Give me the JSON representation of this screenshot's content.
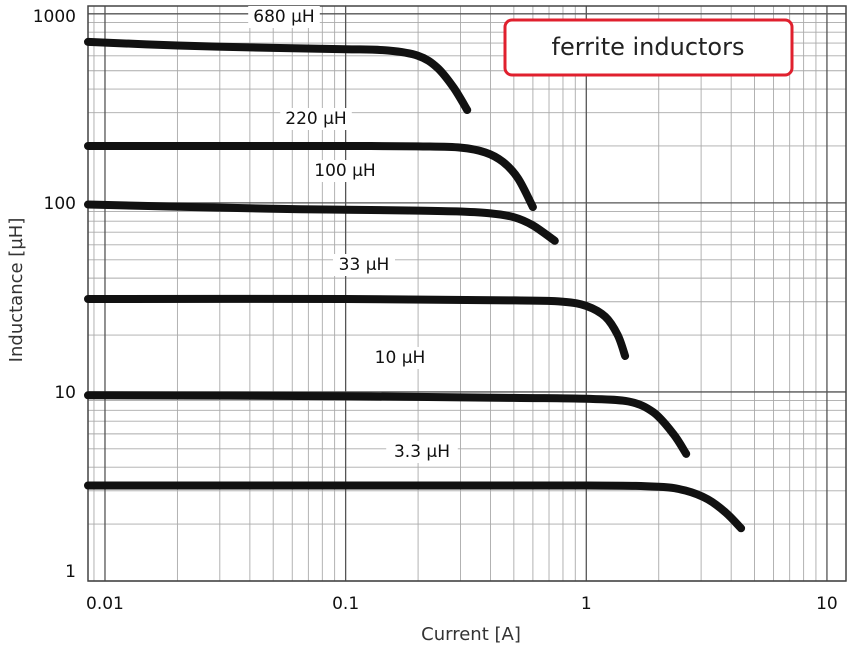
{
  "chart_data": {
    "type": "line",
    "title": "",
    "xlabel": "Current [A]",
    "ylabel": "Inductance [µH]",
    "x_scale": "log",
    "y_scale": "log",
    "xlim": [
      0.0085,
      12
    ],
    "ylim": [
      1,
      1100
    ],
    "grid": true,
    "x_ticks": [
      {
        "value": 0.01,
        "label": "0.01"
      },
      {
        "value": 0.1,
        "label": "0.1"
      },
      {
        "value": 1,
        "label": "1"
      },
      {
        "value": 10,
        "label": "10"
      }
    ],
    "y_ticks": [
      {
        "value": 1,
        "label": "1"
      },
      {
        "value": 10,
        "label": "10"
      },
      {
        "value": 100,
        "label": "100"
      },
      {
        "value": 1000,
        "label": "1000"
      }
    ],
    "callout": "ferrite inductors",
    "accent_color": "#e0202e",
    "line_color": "#111111",
    "series": [
      {
        "name": "680 µH",
        "points": [
          [
            0.0085,
            710
          ],
          [
            0.02,
            680
          ],
          [
            0.05,
            660
          ],
          [
            0.1,
            650
          ],
          [
            0.15,
            640
          ],
          [
            0.2,
            600
          ],
          [
            0.24,
            520
          ],
          [
            0.28,
            410
          ],
          [
            0.32,
            310
          ]
        ]
      },
      {
        "name": "220 µH",
        "points": [
          [
            0.0085,
            200
          ],
          [
            0.05,
            200
          ],
          [
            0.1,
            200
          ],
          [
            0.2,
            199
          ],
          [
            0.3,
            196
          ],
          [
            0.38,
            185
          ],
          [
            0.45,
            165
          ],
          [
            0.52,
            135
          ],
          [
            0.6,
            95
          ]
        ]
      },
      {
        "name": "100 µH",
        "points": [
          [
            0.0085,
            98
          ],
          [
            0.05,
            93
          ],
          [
            0.1,
            92
          ],
          [
            0.2,
            91
          ],
          [
            0.3,
            90
          ],
          [
            0.4,
            88
          ],
          [
            0.5,
            84
          ],
          [
            0.6,
            76
          ],
          [
            0.74,
            63
          ]
        ]
      },
      {
        "name": "33 µH",
        "points": [
          [
            0.0085,
            31
          ],
          [
            0.1,
            31
          ],
          [
            0.5,
            30.5
          ],
          [
            0.8,
            30
          ],
          [
            1.0,
            28.5
          ],
          [
            1.2,
            25
          ],
          [
            1.35,
            20
          ],
          [
            1.45,
            15.5
          ]
        ]
      },
      {
        "name": "10 µH",
        "points": [
          [
            0.0085,
            9.6
          ],
          [
            0.1,
            9.5
          ],
          [
            0.5,
            9.3
          ],
          [
            1.0,
            9.2
          ],
          [
            1.5,
            8.9
          ],
          [
            1.9,
            7.8
          ],
          [
            2.3,
            6
          ],
          [
            2.6,
            4.7
          ]
        ]
      },
      {
        "name": "3.3 µH",
        "points": [
          [
            0.0085,
            3.2
          ],
          [
            0.1,
            3.2
          ],
          [
            1.0,
            3.2
          ],
          [
            2.0,
            3.15
          ],
          [
            2.6,
            3.0
          ],
          [
            3.2,
            2.7
          ],
          [
            3.8,
            2.3
          ],
          [
            4.4,
            1.9
          ]
        ]
      }
    ]
  }
}
